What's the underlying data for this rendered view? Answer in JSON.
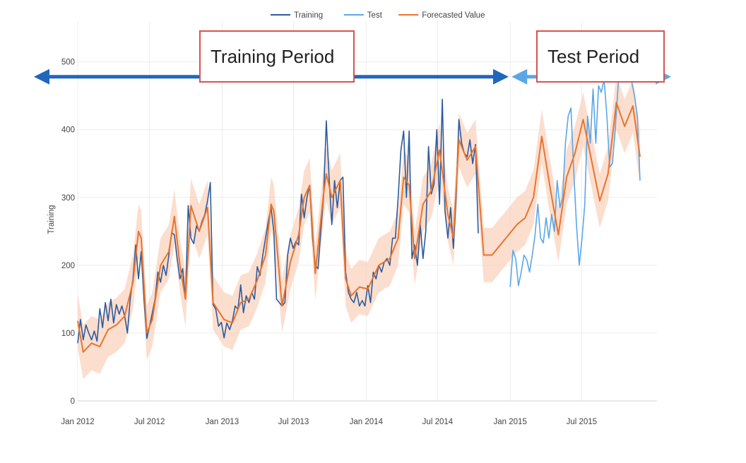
{
  "chart_data": {
    "type": "line",
    "ylabel": "Training",
    "ylim": [
      0,
      560
    ],
    "yticks": [
      0,
      100,
      200,
      300,
      400,
      500
    ],
    "xlim": [
      "2012-01-01",
      "2016-01-08"
    ],
    "xticks": [
      {
        "date": "2012-01-01",
        "label": "Jan 2012"
      },
      {
        "date": "2012-07-01",
        "label": "Jul 2012"
      },
      {
        "date": "2013-01-01",
        "label": "Jan 2013"
      },
      {
        "date": "2013-07-01",
        "label": "Jul 2013"
      },
      {
        "date": "2014-01-01",
        "label": "Jan 2014"
      },
      {
        "date": "2014-07-01",
        "label": "Jul 2014"
      },
      {
        "date": "2015-01-01",
        "label": "Jan 2015"
      },
      {
        "date": "2015-07-01",
        "label": "Jul 2015"
      }
    ],
    "grid": true,
    "legend_position": "top-center",
    "series": [
      {
        "name": "Training",
        "color": "#2c5b9e",
        "points": [
          [
            "2012-01-01",
            85
          ],
          [
            "2012-01-08",
            120
          ],
          [
            "2012-01-15",
            90
          ],
          [
            "2012-01-22",
            112
          ],
          [
            "2012-01-29",
            100
          ],
          [
            "2012-02-05",
            90
          ],
          [
            "2012-02-12",
            103
          ],
          [
            "2012-02-19",
            88
          ],
          [
            "2012-02-26",
            136
          ],
          [
            "2012-03-04",
            108
          ],
          [
            "2012-03-11",
            145
          ],
          [
            "2012-03-18",
            118
          ],
          [
            "2012-03-25",
            150
          ],
          [
            "2012-04-01",
            115
          ],
          [
            "2012-04-08",
            142
          ],
          [
            "2012-04-15",
            128
          ],
          [
            "2012-04-22",
            140
          ],
          [
            "2012-04-29",
            125
          ],
          [
            "2012-05-06",
            100
          ],
          [
            "2012-05-13",
            150
          ],
          [
            "2012-05-20",
            180
          ],
          [
            "2012-05-27",
            230
          ],
          [
            "2012-06-03",
            180
          ],
          [
            "2012-06-10",
            220
          ],
          [
            "2012-06-17",
            150
          ],
          [
            "2012-06-24",
            92
          ],
          [
            "2012-07-01",
            110
          ],
          [
            "2012-07-08",
            130
          ],
          [
            "2012-07-15",
            150
          ],
          [
            "2012-07-22",
            190
          ],
          [
            "2012-07-29",
            175
          ],
          [
            "2012-08-05",
            200
          ],
          [
            "2012-08-12",
            185
          ],
          [
            "2012-08-19",
            215
          ],
          [
            "2012-08-26",
            248
          ],
          [
            "2012-09-02",
            245
          ],
          [
            "2012-09-09",
            210
          ],
          [
            "2012-09-16",
            180
          ],
          [
            "2012-09-23",
            195
          ],
          [
            "2012-09-30",
            150
          ],
          [
            "2012-10-07",
            288
          ],
          [
            "2012-10-14",
            240
          ],
          [
            "2012-10-21",
            232
          ],
          [
            "2012-10-28",
            258
          ],
          [
            "2012-11-04",
            250
          ],
          [
            "2012-11-11",
            265
          ],
          [
            "2012-11-18",
            275
          ],
          [
            "2012-11-25",
            295
          ],
          [
            "2012-12-02",
            322
          ],
          [
            "2012-12-09",
            142
          ],
          [
            "2012-12-16",
            135
          ],
          [
            "2012-12-23",
            110
          ],
          [
            "2012-12-30",
            116
          ],
          [
            "2013-01-06",
            93
          ],
          [
            "2013-01-13",
            115
          ],
          [
            "2013-01-20",
            105
          ],
          [
            "2013-01-27",
            118
          ],
          [
            "2013-02-03",
            140
          ],
          [
            "2013-02-10",
            135
          ],
          [
            "2013-02-17",
            171
          ],
          [
            "2013-02-24",
            130
          ],
          [
            "2013-03-03",
            155
          ],
          [
            "2013-03-10",
            145
          ],
          [
            "2013-03-17",
            160
          ],
          [
            "2013-03-24",
            150
          ],
          [
            "2013-03-31",
            198
          ],
          [
            "2013-04-07",
            185
          ],
          [
            "2013-04-14",
            215
          ],
          [
            "2013-04-21",
            240
          ],
          [
            "2013-04-28",
            265
          ],
          [
            "2013-05-05",
            285
          ],
          [
            "2013-05-12",
            250
          ],
          [
            "2013-05-19",
            150
          ],
          [
            "2013-05-26",
            145
          ],
          [
            "2013-06-02",
            140
          ],
          [
            "2013-06-09",
            145
          ],
          [
            "2013-06-16",
            215
          ],
          [
            "2013-06-23",
            240
          ],
          [
            "2013-06-30",
            225
          ],
          [
            "2013-07-07",
            235
          ],
          [
            "2013-07-14",
            230
          ],
          [
            "2013-07-21",
            305
          ],
          [
            "2013-07-28",
            270
          ],
          [
            "2013-08-04",
            300
          ],
          [
            "2013-08-11",
            318
          ],
          [
            "2013-08-18",
            240
          ],
          [
            "2013-08-25",
            200
          ],
          [
            "2013-09-01",
            195
          ],
          [
            "2013-09-08",
            250
          ],
          [
            "2013-09-15",
            300
          ],
          [
            "2013-09-22",
            413
          ],
          [
            "2013-09-29",
            330
          ],
          [
            "2013-10-06",
            260
          ],
          [
            "2013-10-13",
            325
          ],
          [
            "2013-10-20",
            285
          ],
          [
            "2013-10-27",
            325
          ],
          [
            "2013-11-03",
            330
          ],
          [
            "2013-11-10",
            190
          ],
          [
            "2013-11-17",
            160
          ],
          [
            "2013-11-24",
            150
          ],
          [
            "2013-12-01",
            145
          ],
          [
            "2013-12-08",
            160
          ],
          [
            "2013-12-15",
            140
          ],
          [
            "2013-12-22",
            148
          ],
          [
            "2013-12-29",
            140
          ],
          [
            "2014-01-05",
            170
          ],
          [
            "2014-01-12",
            145
          ],
          [
            "2014-01-19",
            190
          ],
          [
            "2014-01-26",
            180
          ],
          [
            "2014-02-02",
            200
          ],
          [
            "2014-02-09",
            190
          ],
          [
            "2014-02-16",
            205
          ],
          [
            "2014-02-23",
            210
          ],
          [
            "2014-03-02",
            200
          ],
          [
            "2014-03-09",
            240
          ],
          [
            "2014-03-16",
            240
          ],
          [
            "2014-03-23",
            300
          ],
          [
            "2014-03-30",
            370
          ],
          [
            "2014-04-06",
            398
          ],
          [
            "2014-04-13",
            300
          ],
          [
            "2014-04-20",
            398
          ],
          [
            "2014-04-27",
            210
          ],
          [
            "2014-05-04",
            230
          ],
          [
            "2014-05-11",
            200
          ],
          [
            "2014-05-18",
            260
          ],
          [
            "2014-05-25",
            210
          ],
          [
            "2014-06-01",
            250
          ],
          [
            "2014-06-08",
            375
          ],
          [
            "2014-06-15",
            305
          ],
          [
            "2014-06-22",
            320
          ],
          [
            "2014-06-29",
            400
          ],
          [
            "2014-07-06",
            290
          ],
          [
            "2014-07-13",
            445
          ],
          [
            "2014-07-20",
            280
          ],
          [
            "2014-07-27",
            240
          ],
          [
            "2014-08-03",
            285
          ],
          [
            "2014-08-10",
            225
          ],
          [
            "2014-08-17",
            300
          ],
          [
            "2014-08-24",
            415
          ],
          [
            "2014-08-31",
            380
          ],
          [
            "2014-09-07",
            365
          ],
          [
            "2014-09-14",
            360
          ],
          [
            "2014-09-21",
            385
          ],
          [
            "2014-09-28",
            350
          ],
          [
            "2014-10-05",
            378
          ],
          [
            "2014-10-12",
            247
          ]
        ]
      },
      {
        "name": "Test",
        "color": "#5aa7e8",
        "points": [
          [
            "2015-01-01",
            168
          ],
          [
            "2015-01-08",
            222
          ],
          [
            "2015-01-15",
            210
          ],
          [
            "2015-01-22",
            170
          ],
          [
            "2015-01-29",
            190
          ],
          [
            "2015-02-05",
            215
          ],
          [
            "2015-02-12",
            208
          ],
          [
            "2015-02-19",
            190
          ],
          [
            "2015-02-26",
            215
          ],
          [
            "2015-03-05",
            245
          ],
          [
            "2015-03-12",
            290
          ],
          [
            "2015-03-19",
            240
          ],
          [
            "2015-03-26",
            233
          ],
          [
            "2015-04-02",
            270
          ],
          [
            "2015-04-09",
            240
          ],
          [
            "2015-04-16",
            275
          ],
          [
            "2015-04-23",
            250
          ],
          [
            "2015-04-30",
            325
          ],
          [
            "2015-05-07",
            285
          ],
          [
            "2015-05-14",
            300
          ],
          [
            "2015-05-21",
            380
          ],
          [
            "2015-05-28",
            420
          ],
          [
            "2015-06-04",
            432
          ],
          [
            "2015-06-11",
            340
          ],
          [
            "2015-06-18",
            260
          ],
          [
            "2015-06-25",
            200
          ],
          [
            "2015-07-02",
            240
          ],
          [
            "2015-07-09",
            290
          ],
          [
            "2015-07-16",
            420
          ],
          [
            "2015-07-23",
            380
          ],
          [
            "2015-07-30",
            460
          ],
          [
            "2015-08-06",
            380
          ],
          [
            "2015-08-13",
            465
          ],
          [
            "2015-08-20",
            455
          ],
          [
            "2015-08-27",
            475
          ],
          [
            "2015-09-03",
            420
          ],
          [
            "2015-09-10",
            345
          ],
          [
            "2015-09-17",
            350
          ],
          [
            "2015-09-24",
            400
          ],
          [
            "2015-10-01",
            460
          ],
          [
            "2015-10-08",
            510
          ],
          [
            "2015-10-15",
            540
          ],
          [
            "2015-10-22",
            520
          ],
          [
            "2015-10-29",
            490
          ],
          [
            "2015-11-05",
            470
          ],
          [
            "2015-11-12",
            450
          ],
          [
            "2015-11-19",
            420
          ],
          [
            "2015-11-26",
            325
          ]
        ]
      },
      {
        "name": "Forecasted Value",
        "color": "#e8742e",
        "band_color": "#fbd3bd",
        "points": [
          [
            "2012-01-01",
            118
          ],
          [
            "2012-01-15",
            72
          ],
          [
            "2012-02-05",
            85
          ],
          [
            "2012-02-26",
            80
          ],
          [
            "2012-03-18",
            105
          ],
          [
            "2012-04-08",
            112
          ],
          [
            "2012-04-29",
            125
          ],
          [
            "2012-05-20",
            175
          ],
          [
            "2012-06-03",
            250
          ],
          [
            "2012-06-10",
            240
          ],
          [
            "2012-06-24",
            100
          ],
          [
            "2012-07-08",
            120
          ],
          [
            "2012-07-29",
            200
          ],
          [
            "2012-08-19",
            220
          ],
          [
            "2012-09-02",
            272
          ],
          [
            "2012-09-16",
            200
          ],
          [
            "2012-09-30",
            150
          ],
          [
            "2012-10-14",
            288
          ],
          [
            "2012-11-04",
            250
          ],
          [
            "2012-11-25",
            285
          ],
          [
            "2012-12-09",
            145
          ],
          [
            "2013-01-06",
            120
          ],
          [
            "2013-01-27",
            115
          ],
          [
            "2013-02-17",
            145
          ],
          [
            "2013-03-10",
            150
          ],
          [
            "2013-03-31",
            178
          ],
          [
            "2013-04-21",
            215
          ],
          [
            "2013-05-05",
            290
          ],
          [
            "2013-05-12",
            280
          ],
          [
            "2013-06-02",
            140
          ],
          [
            "2013-06-23",
            205
          ],
          [
            "2013-07-14",
            245
          ],
          [
            "2013-07-28",
            300
          ],
          [
            "2013-08-11",
            318
          ],
          [
            "2013-08-25",
            188
          ],
          [
            "2013-09-15",
            305
          ],
          [
            "2013-09-22",
            335
          ],
          [
            "2013-10-06",
            300
          ],
          [
            "2013-10-27",
            325
          ],
          [
            "2013-11-10",
            180
          ],
          [
            "2013-11-24",
            155
          ],
          [
            "2013-12-15",
            168
          ],
          [
            "2014-01-05",
            165
          ],
          [
            "2014-02-02",
            200
          ],
          [
            "2014-03-02",
            210
          ],
          [
            "2014-03-23",
            240
          ],
          [
            "2014-04-06",
            330
          ],
          [
            "2014-04-20",
            318
          ],
          [
            "2014-05-04",
            210
          ],
          [
            "2014-05-25",
            290
          ],
          [
            "2014-06-15",
            310
          ],
          [
            "2014-07-06",
            370
          ],
          [
            "2014-07-27",
            275
          ],
          [
            "2014-08-10",
            240
          ],
          [
            "2014-08-24",
            385
          ],
          [
            "2014-09-14",
            355
          ],
          [
            "2014-10-05",
            375
          ],
          [
            "2014-10-26",
            215
          ],
          [
            "2014-11-16",
            215
          ],
          [
            "2014-12-07",
            230
          ],
          [
            "2014-12-28",
            245
          ],
          [
            "2015-01-18",
            260
          ],
          [
            "2015-02-08",
            270
          ],
          [
            "2015-03-01",
            300
          ],
          [
            "2015-03-22",
            390
          ],
          [
            "2015-04-12",
            315
          ],
          [
            "2015-05-03",
            245
          ],
          [
            "2015-05-24",
            330
          ],
          [
            "2015-06-14",
            365
          ],
          [
            "2015-07-05",
            415
          ],
          [
            "2015-07-26",
            355
          ],
          [
            "2015-08-16",
            295
          ],
          [
            "2015-09-06",
            335
          ],
          [
            "2015-09-27",
            440
          ],
          [
            "2015-10-18",
            405
          ],
          [
            "2015-11-08",
            435
          ],
          [
            "2015-11-26",
            360
          ]
        ]
      }
    ],
    "annotations": [
      {
        "text": "Training Period",
        "from": "2012-01-01",
        "to": "2014-12-15",
        "y": 478,
        "color": "#1f66bd"
      },
      {
        "text": "Test Period",
        "from": "2015-01-01",
        "to": "2016-01-08",
        "y": 478,
        "color": "#5aa7e8"
      }
    ]
  }
}
